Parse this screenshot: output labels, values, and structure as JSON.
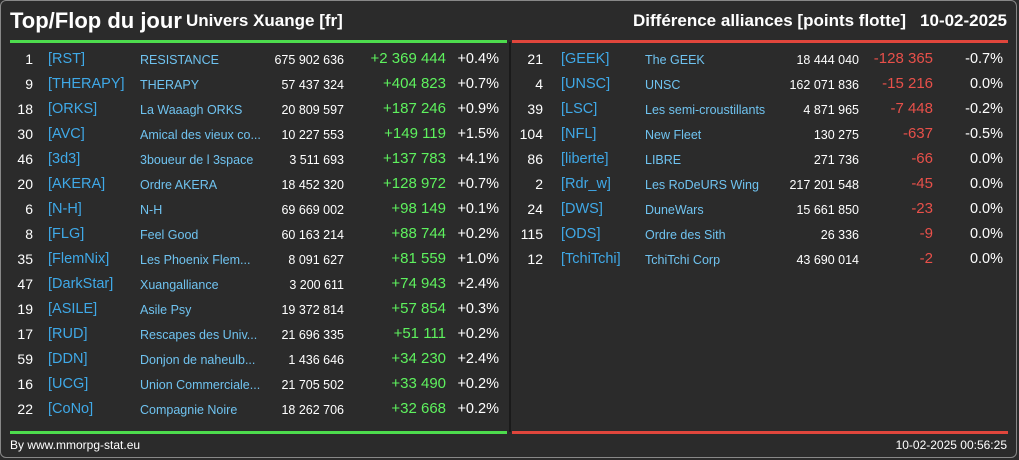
{
  "header": {
    "title": "Top/Flop du jour",
    "universe": "Univers Xuange [fr]",
    "diff_title": "Différence alliances [points flotte]",
    "date": "10-02-2025"
  },
  "colors": {
    "up": "#5ef25e",
    "down": "#e8504a",
    "tag": "#3fa9e8",
    "name": "#6fc3f0",
    "top_bar": "#4ddc4d",
    "flop_bar": "#e0463c"
  },
  "top": [
    {
      "rank": "1",
      "tag": "[RST]",
      "name": "RESISTANCE",
      "points": "675 902 636",
      "delta": "+2 369 444",
      "pct": "+0.4%"
    },
    {
      "rank": "9",
      "tag": "[THERAPY]",
      "name": "THERAPY",
      "points": "57 437 324",
      "delta": "+404 823",
      "pct": "+0.7%"
    },
    {
      "rank": "18",
      "tag": "[ORKS]",
      "name": "La Waaagh ORKS",
      "points": "20 809 597",
      "delta": "+187 246",
      "pct": "+0.9%"
    },
    {
      "rank": "30",
      "tag": "[AVC]",
      "name": "Amical des vieux co...",
      "points": "10 227 553",
      "delta": "+149 119",
      "pct": "+1.5%"
    },
    {
      "rank": "46",
      "tag": "[3d3]",
      "name": "3boueur de l 3space",
      "points": "3 511 693",
      "delta": "+137 783",
      "pct": "+4.1%"
    },
    {
      "rank": "20",
      "tag": "[AKERA]",
      "name": "Ordre AKERA",
      "points": "18 452 320",
      "delta": "+128 972",
      "pct": "+0.7%"
    },
    {
      "rank": "6",
      "tag": "[N-H]",
      "name": "N-H",
      "points": "69 669 002",
      "delta": "+98 149",
      "pct": "+0.1%"
    },
    {
      "rank": "8",
      "tag": "[FLG]",
      "name": "Feel Good",
      "points": "60 163 214",
      "delta": "+88 744",
      "pct": "+0.2%"
    },
    {
      "rank": "35",
      "tag": "[FlemNix]",
      "name": "Les Phoenix Flem...",
      "points": "8 091 627",
      "delta": "+81 559",
      "pct": "+1.0%"
    },
    {
      "rank": "47",
      "tag": "[DarkStar]",
      "name": "Xuangalliance",
      "points": "3 200 611",
      "delta": "+74 943",
      "pct": "+2.4%"
    },
    {
      "rank": "19",
      "tag": "[ASILE]",
      "name": "Asile Psy",
      "points": "19 372 814",
      "delta": "+57 854",
      "pct": "+0.3%"
    },
    {
      "rank": "17",
      "tag": "[RUD]",
      "name": "Rescapes des Univ...",
      "points": "21 696 335",
      "delta": "+51 111",
      "pct": "+0.2%"
    },
    {
      "rank": "59",
      "tag": "[DDN]",
      "name": "Donjon de naheulb...",
      "points": "1 436 646",
      "delta": "+34 230",
      "pct": "+2.4%"
    },
    {
      "rank": "16",
      "tag": "[UCG]",
      "name": "Union Commerciale...",
      "points": "21 705 502",
      "delta": "+33 490",
      "pct": "+0.2%"
    },
    {
      "rank": "22",
      "tag": "[CoNo]",
      "name": "Compagnie Noire",
      "points": "18 262 706",
      "delta": "+32 668",
      "pct": "+0.2%"
    }
  ],
  "flop": [
    {
      "rank": "21",
      "tag": "[GEEK]",
      "name": "The GEEK",
      "points": "18 444 040",
      "delta": "-128 365",
      "pct": "-0.7%"
    },
    {
      "rank": "4",
      "tag": "[UNSC]",
      "name": "UNSC",
      "points": "162 071 836",
      "delta": "-15 216",
      "pct": "0.0%"
    },
    {
      "rank": "39",
      "tag": "[LSC]",
      "name": "Les semi-croustillants",
      "points": "4 871 965",
      "delta": "-7 448",
      "pct": "-0.2%"
    },
    {
      "rank": "104",
      "tag": "[NFL]",
      "name": "New Fleet",
      "points": "130 275",
      "delta": "-637",
      "pct": "-0.5%"
    },
    {
      "rank": "86",
      "tag": "[liberte]",
      "name": "LIBRE",
      "points": "271 736",
      "delta": "-66",
      "pct": "0.0%"
    },
    {
      "rank": "2",
      "tag": "[Rdr_w]",
      "name": "Les RoDeURS Wing",
      "points": "217 201 548",
      "delta": "-45",
      "pct": "0.0%"
    },
    {
      "rank": "24",
      "tag": "[DWS]",
      "name": "DuneWars",
      "points": "15 661 850",
      "delta": "-23",
      "pct": "0.0%"
    },
    {
      "rank": "115",
      "tag": "[ODS]",
      "name": "Ordre des Sith",
      "points": "26 336",
      "delta": "-9",
      "pct": "0.0%"
    },
    {
      "rank": "12",
      "tag": "[TchiTchi]",
      "name": "TchiTchi Corp",
      "points": "43 690 014",
      "delta": "-2",
      "pct": "0.0%"
    }
  ],
  "footer": {
    "source": "By www.mmorpg-stat.eu",
    "timestamp": "10-02-2025 00:56:25"
  }
}
